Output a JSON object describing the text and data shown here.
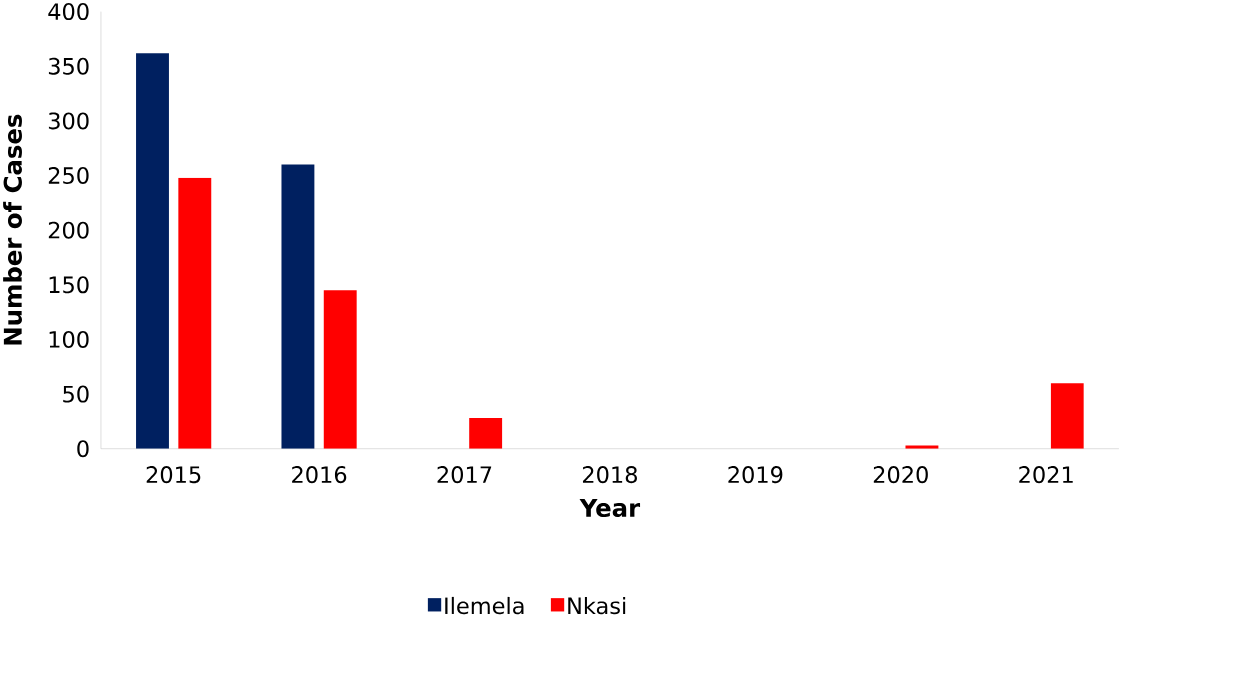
{
  "chart_data": {
    "type": "bar",
    "xlabel": "Year",
    "ylabel": "Number of Cases",
    "categories": [
      "2015",
      "2016",
      "2017",
      "2018",
      "2019",
      "2020",
      "2021"
    ],
    "series": [
      {
        "name": "Ilemela",
        "color": "#002060",
        "values": [
          362,
          260,
          0,
          0,
          0,
          0,
          0
        ]
      },
      {
        "name": "Nkasi",
        "color": "#ff0000",
        "values": [
          248,
          145,
          28,
          0,
          0,
          3,
          60
        ]
      }
    ],
    "ylim": [
      0,
      400
    ],
    "yticks": [
      0,
      50,
      100,
      150,
      200,
      250,
      300,
      350,
      400
    ],
    "grid": false,
    "legend": "bottom"
  }
}
